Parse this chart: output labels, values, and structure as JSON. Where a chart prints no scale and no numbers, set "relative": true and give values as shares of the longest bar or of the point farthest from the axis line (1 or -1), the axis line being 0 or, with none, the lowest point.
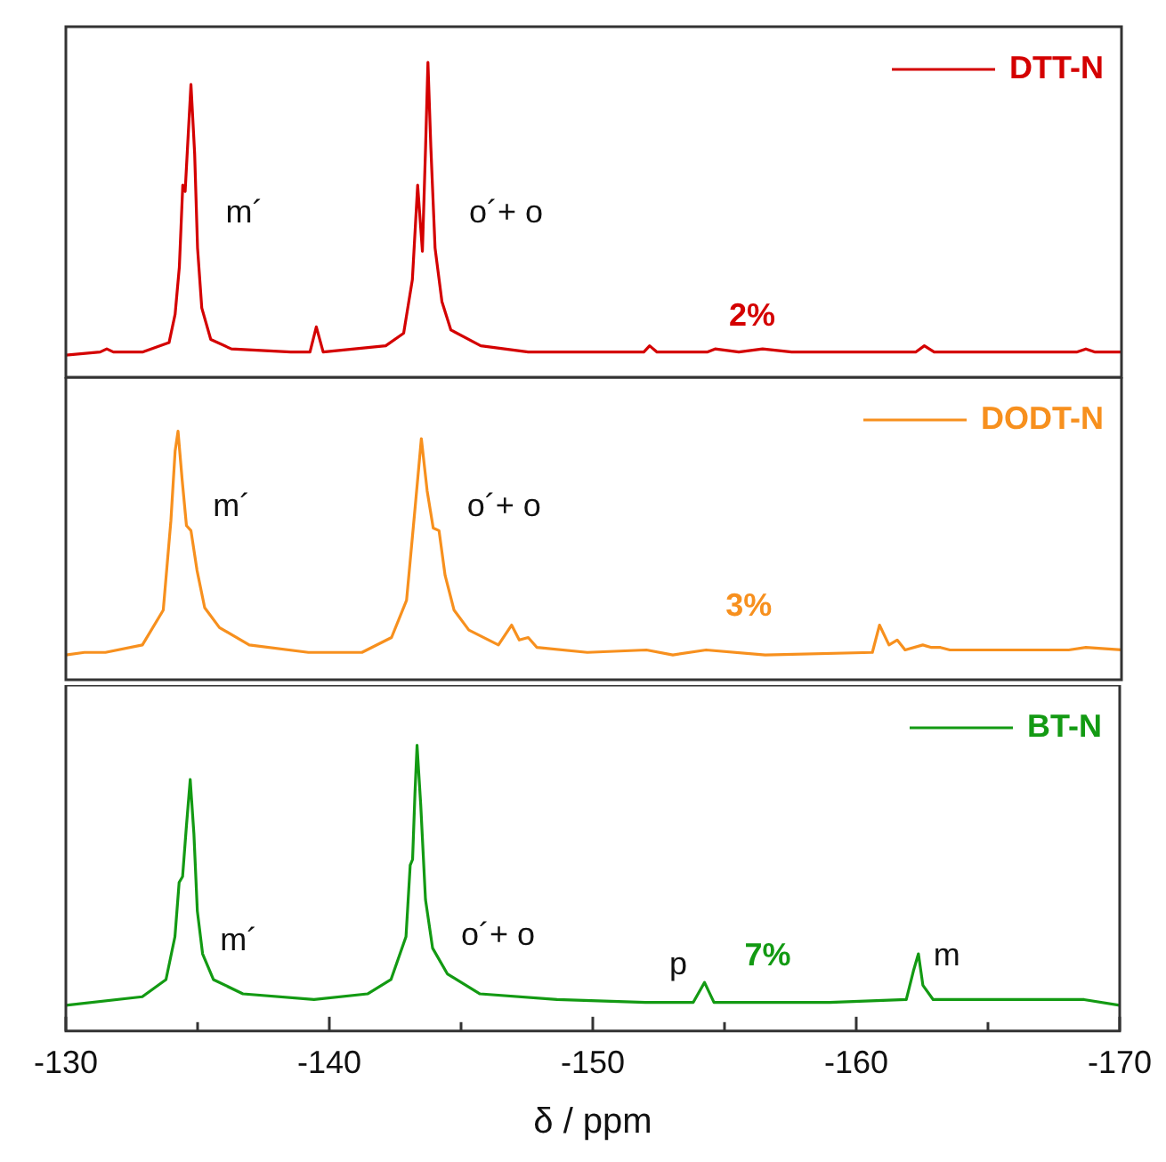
{
  "chart_data": [
    {
      "type": "line",
      "relative": true,
      "legend": "top right",
      "tick_labels": false,
      "xlim": [
        -130,
        -170
      ],
      "x": [
        -130,
        -131.3,
        -131.55,
        -131.8,
        -132.9,
        -133.91,
        -134.14,
        -134.3,
        -134.43,
        -134.52,
        -134.61,
        -134.74,
        -134.88,
        -134.99,
        -135.15,
        -135.49,
        -136.27,
        -138.52,
        -139.25,
        -139.49,
        -139.75,
        -142.12,
        -142.8,
        -143.13,
        -143.33,
        -143.51,
        -143.63,
        -143.72,
        -143.83,
        -143.99,
        -144.25,
        -144.59,
        -145.72,
        -147.52,
        -150,
        -151.9,
        -152.12,
        -152.4,
        -154.3,
        -154.6,
        -155.5,
        -156.4,
        -157.5,
        -162.2,
        -162.53,
        -162.9,
        -168.3,
        -168.65,
        -169,
        -170
      ],
      "series": [
        {
          "name": "DTT-N",
          "color": "#d40000",
          "values": [
            0.07,
            0.08,
            0.09,
            0.08,
            0.08,
            0.11,
            0.2,
            0.35,
            0.61,
            0.59,
            0.73,
            0.93,
            0.71,
            0.41,
            0.22,
            0.12,
            0.09,
            0.08,
            0.08,
            0.16,
            0.08,
            0.1,
            0.14,
            0.31,
            0.61,
            0.4,
            0.73,
            1,
            0.73,
            0.41,
            0.24,
            0.15,
            0.1,
            0.08,
            0.08,
            0.08,
            0.1,
            0.08,
            0.08,
            0.09,
            0.08,
            0.09,
            0.08,
            0.08,
            0.1,
            0.08,
            0.08,
            0.09,
            0.08,
            0.08
          ]
        }
      ],
      "annotations": [
        "m´",
        "o´+ o",
        "2%"
      ]
    },
    {
      "type": "line",
      "relative": true,
      "legend": "top right",
      "tick_labels": false,
      "xlim": [
        -130,
        -170
      ],
      "x": [
        -130,
        -130.7,
        -131.5,
        -132.9,
        -133.69,
        -133.98,
        -134.14,
        -134.25,
        -134.41,
        -134.57,
        -134.74,
        -134.97,
        -135.26,
        -135.82,
        -136.95,
        -139.19,
        -141.22,
        -142.34,
        -142.91,
        -143.24,
        -143.47,
        -143.69,
        -143.92,
        -144.14,
        -144.37,
        -144.71,
        -145.27,
        -146.39,
        -146.89,
        -147.18,
        -147.52,
        -147.85,
        -149.76,
        -152,
        -153,
        -154.26,
        -156.5,
        -160.56,
        -160.83,
        -161.19,
        -161.5,
        -161.8,
        -162.47,
        -162.8,
        -163.14,
        -163.5,
        -168,
        -168.65,
        -170
      ],
      "series": [
        {
          "name": "DODT-N",
          "color": "#f7901e",
          "values": [
            0.1,
            0.11,
            0.11,
            0.14,
            0.28,
            0.64,
            0.92,
            1,
            0.8,
            0.62,
            0.6,
            0.44,
            0.29,
            0.21,
            0.14,
            0.11,
            0.11,
            0.17,
            0.32,
            0.7,
            0.97,
            0.76,
            0.61,
            0.6,
            0.42,
            0.28,
            0.2,
            0.14,
            0.22,
            0.16,
            0.17,
            0.13,
            0.11,
            0.12,
            0.1,
            0.12,
            0.1,
            0.11,
            0.22,
            0.14,
            0.16,
            0.12,
            0.14,
            0.13,
            0.13,
            0.12,
            0.12,
            0.13,
            0.12
          ]
        }
      ],
      "annotations": [
        "m´",
        "o´+ o",
        "3%"
      ]
    },
    {
      "type": "line",
      "relative": true,
      "legend": "top right",
      "tick_labels": "x",
      "xlim": [
        -130,
        -170
      ],
      "xlabel": "δ / ppm",
      "xticks": [
        -130,
        {
          "value": -135,
          "label": null
        },
        -140,
        {
          "value": -145,
          "label": null
        },
        -150,
        {
          "value": -155,
          "label": null
        },
        -160,
        {
          "value": -165,
          "label": null
        },
        -170
      ],
      "x": [
        -130,
        -132.9,
        -133.8,
        -134.14,
        -134.3,
        -134.43,
        -134.57,
        -134.72,
        -134.86,
        -134.99,
        -135.19,
        -135.6,
        -136.72,
        -139.42,
        -141.45,
        -142.34,
        -142.91,
        -143.07,
        -143.16,
        -143.25,
        -143.33,
        -143.47,
        -143.65,
        -143.92,
        -144.48,
        -145.72,
        -148.64,
        -152,
        -153.81,
        -154.24,
        -154.6,
        -156.29,
        -158.99,
        -161.9,
        -162.17,
        -162.36,
        -162.53,
        -162.92,
        -168.65,
        -170
      ],
      "series": [
        {
          "name": "BT-N",
          "color": "#139a13",
          "values": [
            0.09,
            0.12,
            0.18,
            0.33,
            0.52,
            0.54,
            0.71,
            0.88,
            0.69,
            0.42,
            0.27,
            0.18,
            0.13,
            0.11,
            0.13,
            0.18,
            0.33,
            0.58,
            0.6,
            0.83,
            1,
            0.79,
            0.46,
            0.29,
            0.2,
            0.13,
            0.11,
            0.1,
            0.1,
            0.17,
            0.1,
            0.1,
            0.1,
            0.11,
            0.21,
            0.27,
            0.16,
            0.11,
            0.11,
            0.09
          ]
        }
      ],
      "annotations": [
        "m´",
        "o´+ o",
        "p",
        "7%",
        "m"
      ]
    }
  ]
}
